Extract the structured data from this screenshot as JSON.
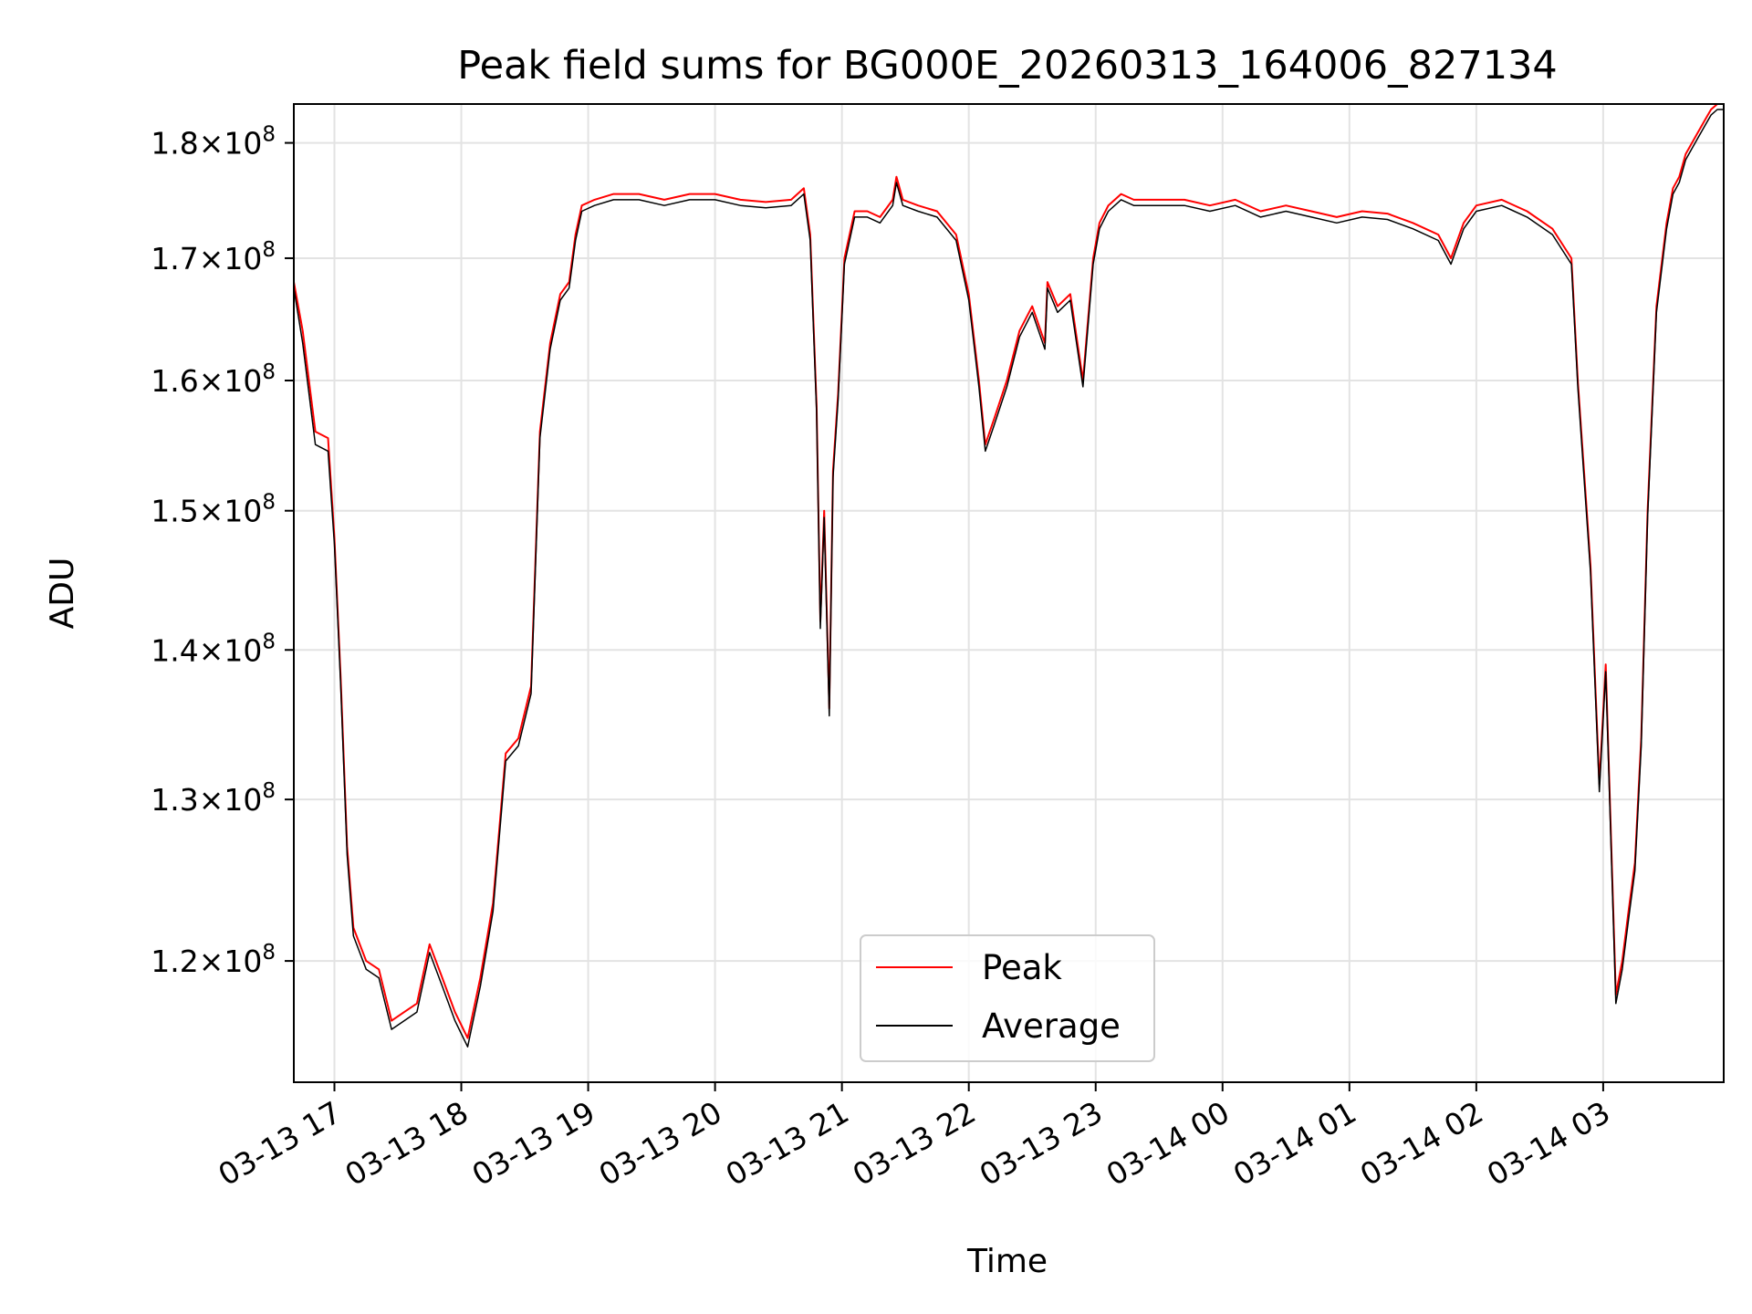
{
  "chart_data": {
    "type": "line",
    "title": "Peak field sums for BG000E_20260313_164006_827134",
    "xlabel": "Time",
    "ylabel": "ADU",
    "y_scale": "log",
    "xlim_hours_since_2026_03_13_16_00": [
      0.68,
      11.95
    ],
    "ylim": [
      113000000,
      183500000
    ],
    "grid": true,
    "legend_position": "lower-center",
    "x_ticks": [
      {
        "hours": 1,
        "label": "03-13 17"
      },
      {
        "hours": 2,
        "label": "03-13 18"
      },
      {
        "hours": 3,
        "label": "03-13 19"
      },
      {
        "hours": 4,
        "label": "03-13 20"
      },
      {
        "hours": 5,
        "label": "03-13 21"
      },
      {
        "hours": 6,
        "label": "03-13 22"
      },
      {
        "hours": 7,
        "label": "03-13 23"
      },
      {
        "hours": 8,
        "label": "03-14 00"
      },
      {
        "hours": 9,
        "label": "03-14 01"
      },
      {
        "hours": 10,
        "label": "03-14 02"
      },
      {
        "hours": 11,
        "label": "03-14 03"
      }
    ],
    "y_ticks": [
      {
        "value": 120000000,
        "mantissa": "1.2",
        "base": "10",
        "exponent": "8"
      },
      {
        "value": 130000000,
        "mantissa": "1.3",
        "base": "10",
        "exponent": "8"
      },
      {
        "value": 140000000,
        "mantissa": "1.4",
        "base": "10",
        "exponent": "8"
      },
      {
        "value": 150000000,
        "mantissa": "1.5",
        "base": "10",
        "exponent": "8"
      },
      {
        "value": 160000000,
        "mantissa": "1.6",
        "base": "10",
        "exponent": "8"
      },
      {
        "value": 170000000,
        "mantissa": "1.7",
        "base": "10",
        "exponent": "8"
      },
      {
        "value": 180000000,
        "mantissa": "1.8",
        "base": "10",
        "exponent": "8"
      }
    ],
    "series": [
      {
        "name": "Peak",
        "color": "#ff0000",
        "x_hours": [
          0.68,
          0.75,
          0.85,
          0.95,
          1.0,
          1.05,
          1.1,
          1.15,
          1.25,
          1.35,
          1.45,
          1.55,
          1.65,
          1.75,
          1.85,
          1.95,
          2.05,
          2.15,
          2.25,
          2.35,
          2.45,
          2.55,
          2.62,
          2.7,
          2.78,
          2.85,
          2.9,
          2.95,
          3.05,
          3.2,
          3.4,
          3.6,
          3.8,
          4.0,
          4.2,
          4.4,
          4.6,
          4.7,
          4.75,
          4.8,
          4.83,
          4.86,
          4.9,
          4.93,
          4.97,
          5.02,
          5.1,
          5.2,
          5.3,
          5.4,
          5.43,
          5.48,
          5.6,
          5.75,
          5.9,
          6.0,
          6.08,
          6.13,
          6.2,
          6.3,
          6.4,
          6.5,
          6.6,
          6.62,
          6.7,
          6.8,
          6.9,
          6.98,
          7.03,
          7.1,
          7.2,
          7.3,
          7.5,
          7.7,
          7.9,
          8.1,
          8.3,
          8.5,
          8.7,
          8.9,
          9.1,
          9.3,
          9.5,
          9.7,
          9.8,
          9.9,
          10.0,
          10.2,
          10.4,
          10.6,
          10.75,
          10.8,
          10.9,
          10.97,
          11.02,
          11.1,
          11.15,
          11.2,
          11.25,
          11.3,
          11.35,
          11.42,
          11.5,
          11.55,
          11.6,
          11.65,
          11.7,
          11.75,
          11.8,
          11.85,
          11.9,
          11.95
        ],
        "y": [
          168000000,
          164000000,
          156000000,
          155500000,
          148000000,
          138000000,
          127000000,
          122000000,
          120000000,
          119500000,
          116500000,
          117000000,
          117500000,
          121000000,
          119000000,
          117000000,
          115500000,
          119000000,
          123500000,
          133000000,
          134000000,
          137500000,
          156000000,
          163000000,
          167000000,
          168000000,
          172000000,
          174500000,
          175000000,
          175500000,
          175500000,
          175000000,
          175500000,
          175500000,
          175000000,
          174800000,
          175000000,
          176000000,
          172000000,
          158000000,
          142000000,
          150000000,
          136000000,
          153000000,
          159000000,
          170000000,
          174000000,
          174000000,
          173500000,
          175000000,
          177000000,
          175000000,
          174500000,
          174000000,
          172000000,
          167000000,
          160000000,
          155000000,
          157000000,
          160000000,
          164000000,
          166000000,
          163000000,
          168000000,
          166000000,
          167000000,
          160000000,
          170000000,
          173000000,
          174500000,
          175500000,
          175000000,
          175000000,
          175000000,
          174500000,
          175000000,
          174000000,
          174500000,
          174000000,
          173500000,
          174000000,
          173800000,
          173000000,
          172000000,
          170000000,
          173000000,
          174500000,
          175000000,
          174000000,
          172500000,
          170000000,
          160000000,
          146000000,
          131000000,
          139000000,
          118000000,
          120000000,
          123000000,
          126000000,
          134000000,
          150000000,
          166000000,
          173000000,
          176000000,
          177000000,
          179000000,
          180000000,
          181000000,
          182000000,
          183000000,
          183500000,
          183500000
        ],
        "stroke_width": 2
      },
      {
        "name": "Average",
        "color": "#000000",
        "x_hours": [
          0.68,
          0.75,
          0.85,
          0.95,
          1.0,
          1.05,
          1.1,
          1.15,
          1.25,
          1.35,
          1.45,
          1.55,
          1.65,
          1.75,
          1.85,
          1.95,
          2.05,
          2.15,
          2.25,
          2.35,
          2.45,
          2.55,
          2.62,
          2.7,
          2.78,
          2.85,
          2.9,
          2.95,
          3.05,
          3.2,
          3.4,
          3.6,
          3.8,
          4.0,
          4.2,
          4.4,
          4.6,
          4.7,
          4.75,
          4.8,
          4.83,
          4.86,
          4.9,
          4.93,
          4.97,
          5.02,
          5.1,
          5.2,
          5.3,
          5.4,
          5.43,
          5.48,
          5.6,
          5.75,
          5.9,
          6.0,
          6.08,
          6.13,
          6.2,
          6.3,
          6.4,
          6.5,
          6.6,
          6.62,
          6.7,
          6.8,
          6.9,
          6.98,
          7.03,
          7.1,
          7.2,
          7.3,
          7.5,
          7.7,
          7.9,
          8.1,
          8.3,
          8.5,
          8.7,
          8.9,
          9.1,
          9.3,
          9.5,
          9.7,
          9.8,
          9.9,
          10.0,
          10.2,
          10.4,
          10.6,
          10.75,
          10.8,
          10.9,
          10.97,
          11.02,
          11.1,
          11.15,
          11.2,
          11.25,
          11.3,
          11.35,
          11.42,
          11.5,
          11.55,
          11.6,
          11.65,
          11.7,
          11.75,
          11.8,
          11.85,
          11.9,
          11.95
        ],
        "y": [
          167500000,
          163000000,
          155000000,
          154500000,
          147500000,
          137500000,
          126500000,
          121500000,
          119500000,
          119000000,
          116000000,
          116500000,
          117000000,
          120500000,
          118500000,
          116500000,
          115000000,
          118500000,
          123000000,
          132500000,
          133500000,
          137000000,
          155500000,
          162500000,
          166500000,
          167500000,
          171500000,
          174000000,
          174500000,
          175000000,
          175000000,
          174500000,
          175000000,
          175000000,
          174500000,
          174300000,
          174500000,
          175500000,
          171500000,
          157500000,
          141500000,
          149500000,
          135500000,
          152500000,
          158500000,
          169500000,
          173500000,
          173500000,
          173000000,
          174500000,
          176500000,
          174500000,
          174000000,
          173500000,
          171500000,
          166500000,
          159500000,
          154500000,
          156500000,
          159500000,
          163500000,
          165500000,
          162500000,
          167500000,
          165500000,
          166500000,
          159500000,
          169500000,
          172500000,
          174000000,
          175000000,
          174500000,
          174500000,
          174500000,
          174000000,
          174500000,
          173500000,
          174000000,
          173500000,
          173000000,
          173500000,
          173300000,
          172500000,
          171500000,
          169500000,
          172500000,
          174000000,
          174500000,
          173500000,
          172000000,
          169500000,
          159500000,
          145500000,
          130500000,
          138500000,
          117500000,
          119500000,
          122500000,
          125500000,
          133500000,
          149500000,
          165500000,
          172500000,
          175500000,
          176500000,
          178500000,
          179500000,
          180500000,
          181500000,
          182500000,
          183000000,
          183000000
        ],
        "stroke_width": 1.5
      }
    ]
  }
}
